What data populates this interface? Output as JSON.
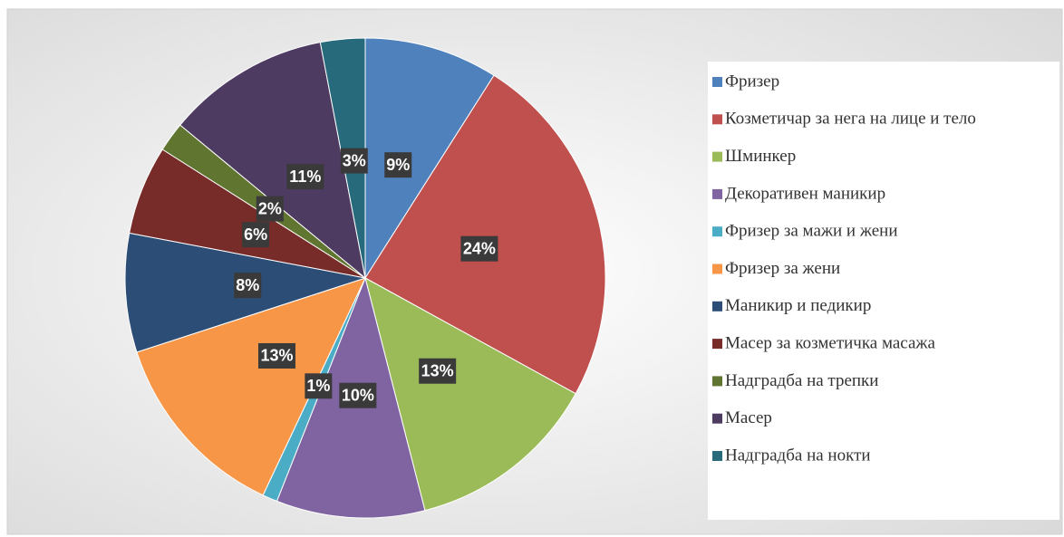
{
  "chart_data": {
    "type": "pie",
    "categories": [
      "Фризер",
      "Козметичар за нега на лице и тело",
      "Шминкер",
      "Декоративен маникир",
      "Фризер за мажи и жени",
      "Фризер за жени",
      "Маникир и педикир",
      "Масер за козметичка масажа",
      "Надградба на трепки",
      "Масер",
      "Надградба на нокти"
    ],
    "values": [
      9,
      24,
      13,
      10,
      1,
      13,
      8,
      6,
      2,
      11,
      3
    ],
    "value_labels": [
      "9%",
      "24%",
      "13%",
      "10%",
      "1%",
      "13%",
      "8%",
      "6%",
      "2%",
      "11%",
      "3%"
    ],
    "colors": [
      "#4f81bd",
      "#c0504d",
      "#9bbb59",
      "#8064a2",
      "#4bacc6",
      "#f79646",
      "#2c4d75",
      "#772c2a",
      "#5f7530",
      "#4d3b62",
      "#276a7c"
    ],
    "legend": "right"
  }
}
